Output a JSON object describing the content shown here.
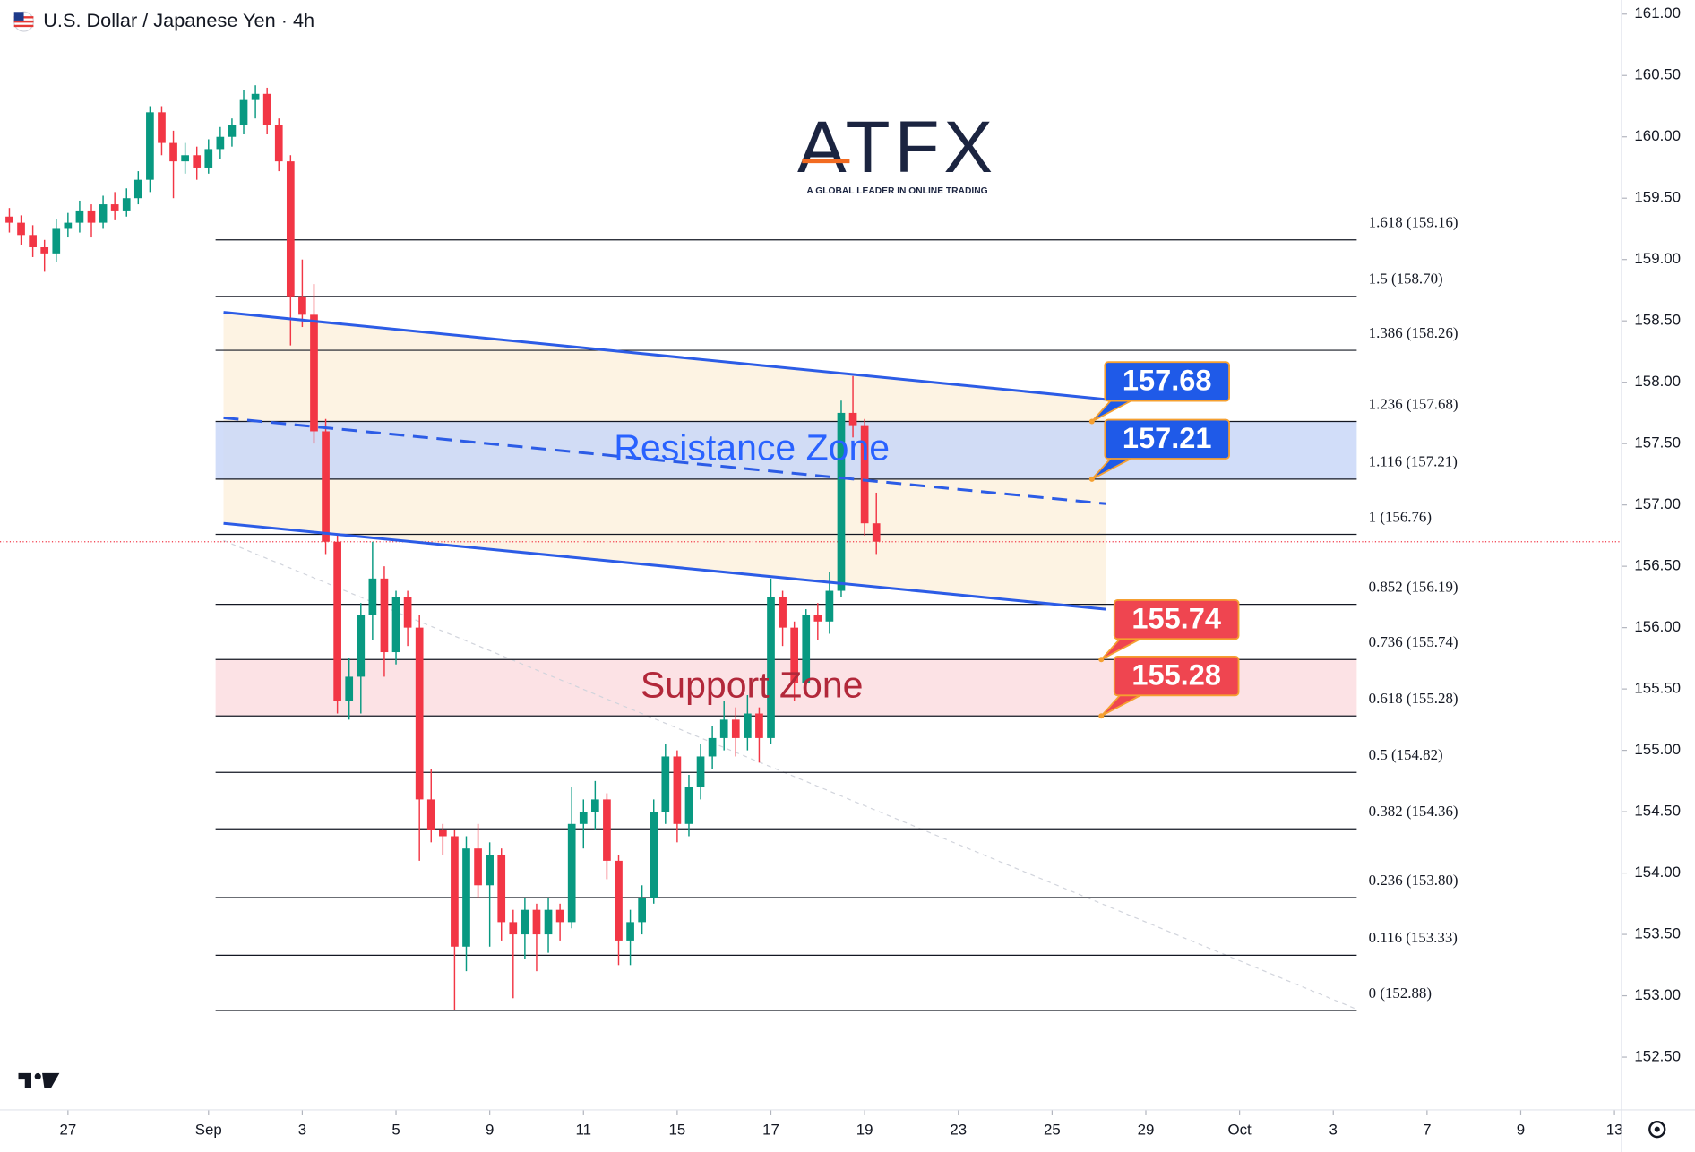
{
  "chart_data": {
    "type": "candlestick",
    "title": "U.S. Dollar / Japanese Yen · 4h",
    "logo": {
      "text": "ATFX",
      "tagline": "A GLOBAL LEADER IN ONLINE TRADING"
    },
    "xlim": [
      -1.45,
      33.15
    ],
    "ylim": [
      152.07,
      161.115
    ],
    "xticks": [
      {
        "value": 0,
        "label": "27"
      },
      {
        "value": 3,
        "label": "Sep"
      },
      {
        "value": 5,
        "label": "3"
      },
      {
        "value": 7,
        "label": "5"
      },
      {
        "value": 9,
        "label": "9"
      },
      {
        "value": 11,
        "label": "11"
      },
      {
        "value": 13,
        "label": "15"
      },
      {
        "value": 15,
        "label": "17"
      },
      {
        "value": 17,
        "label": "19"
      },
      {
        "value": 19,
        "label": "23"
      },
      {
        "value": 21,
        "label": "25"
      },
      {
        "value": 23,
        "label": "29"
      },
      {
        "value": 25,
        "label": "Oct"
      },
      {
        "value": 27,
        "label": "3"
      },
      {
        "value": 29,
        "label": "7"
      },
      {
        "value": 31,
        "label": "9"
      },
      {
        "value": 33,
        "label": "13"
      }
    ],
    "yticks": [
      {
        "value": 152.5,
        "label": "152.50"
      },
      {
        "value": 153,
        "label": "153.00"
      },
      {
        "value": 153.5,
        "label": "153.50"
      },
      {
        "value": 154,
        "label": "154.00"
      },
      {
        "value": 154.5,
        "label": "154.50"
      },
      {
        "value": 155,
        "label": "155.00"
      },
      {
        "value": 155.5,
        "label": "155.50"
      },
      {
        "value": 156,
        "label": "156.00"
      },
      {
        "value": 156.5,
        "label": "156.50"
      },
      {
        "value": 157,
        "label": "157.00"
      },
      {
        "value": 157.5,
        "label": "157.50"
      },
      {
        "value": 158,
        "label": "158.00"
      },
      {
        "value": 158.5,
        "label": "158.50"
      },
      {
        "value": 159,
        "label": "159.00"
      },
      {
        "value": 159.5,
        "label": "159.50"
      },
      {
        "value": 160,
        "label": "160.00"
      },
      {
        "value": 160.5,
        "label": "160.50"
      },
      {
        "value": 161,
        "label": "161.00"
      }
    ],
    "up_color": "#089981",
    "down_color": "#f23645",
    "x": [
      -1.25,
      -1,
      -0.75,
      -0.5,
      -0.25,
      0,
      0.25,
      0.5,
      0.75,
      1,
      1.25,
      1.5,
      1.75,
      2,
      2.25,
      2.5,
      2.75,
      3,
      3.25,
      3.5,
      3.75,
      4,
      4.25,
      4.5,
      4.75,
      5,
      5.25,
      5.5,
      5.75,
      6,
      6.25,
      6.5,
      6.75,
      7,
      7.25,
      7.5,
      7.75,
      8,
      8.25,
      8.5,
      8.75,
      9,
      9.25,
      9.5,
      9.75,
      10,
      10.25,
      10.5,
      10.75,
      11,
      11.25,
      11.5,
      11.75,
      12,
      12.25,
      12.5,
      12.75,
      13,
      13.25,
      13.5,
      13.75,
      14,
      14.25,
      14.5,
      14.75,
      15,
      15.25,
      15.5,
      15.75,
      16,
      16.25,
      16.5,
      16.75,
      17,
      17.25
    ],
    "open": [
      159.35,
      159.3,
      159.2,
      159.1,
      159.05,
      159.25,
      159.3,
      159.4,
      159.3,
      159.45,
      159.4,
      159.5,
      159.65,
      160.2,
      159.95,
      159.8,
      159.85,
      159.75,
      159.9,
      160,
      160.1,
      160.3,
      160.35,
      160.1,
      159.8,
      158.7,
      158.55,
      157.6,
      156.7,
      155.4,
      155.6,
      156.1,
      156.4,
      155.8,
      156.25,
      156,
      154.6,
      154.35,
      154.3,
      153.4,
      154.2,
      153.9,
      154.15,
      153.6,
      153.5,
      153.7,
      153.5,
      153.7,
      153.6,
      154.4,
      154.5,
      154.6,
      154.1,
      153.45,
      153.6,
      153.8,
      154.5,
      154.95,
      154.4,
      154.7,
      154.95,
      155.1,
      155.25,
      155.1,
      155.3,
      155.1,
      156.25,
      156,
      155.55,
      156.1,
      156.05,
      156.3,
      157.75,
      157.65,
      156.85
    ],
    "high": [
      159.42,
      159.36,
      159.28,
      159.16,
      159.33,
      159.38,
      159.48,
      159.45,
      159.52,
      159.55,
      159.58,
      159.72,
      160.25,
      160.25,
      160.05,
      159.95,
      159.92,
      159.98,
      160.08,
      160.15,
      160.38,
      160.42,
      160.4,
      160.15,
      159.85,
      159,
      158.8,
      157.7,
      156.75,
      155.75,
      156.2,
      156.7,
      156.5,
      156.3,
      156.3,
      156.1,
      154.85,
      154.4,
      154.35,
      154.3,
      154.4,
      154.25,
      154.2,
      153.7,
      153.8,
      153.75,
      153.8,
      153.75,
      154.7,
      154.6,
      154.75,
      154.65,
      154.15,
      153.7,
      153.9,
      154.6,
      155.05,
      155,
      154.8,
      155.05,
      155.2,
      155.4,
      155.35,
      155.45,
      155.35,
      156.4,
      156.3,
      156.05,
      156.15,
      156.2,
      156.45,
      157.85,
      158.05,
      157.7,
      157.1
    ],
    "low": [
      159.22,
      159.12,
      159.02,
      158.9,
      158.98,
      159.18,
      159.22,
      159.18,
      159.25,
      159.32,
      159.35,
      159.45,
      159.55,
      159.85,
      159.5,
      159.7,
      159.65,
      159.7,
      159.82,
      159.92,
      160.02,
      160.15,
      160.02,
      159.72,
      158.3,
      158.45,
      157.5,
      156.6,
      155.3,
      155.25,
      155.3,
      155.9,
      155.6,
      155.7,
      155.85,
      154.1,
      154.25,
      154.15,
      152.88,
      153.2,
      153.8,
      153.4,
      153.45,
      152.98,
      153.3,
      153.2,
      153.35,
      153.45,
      153.55,
      154.2,
      154.35,
      153.95,
      153.25,
      153.25,
      153.5,
      153.75,
      154.4,
      154.25,
      154.3,
      154.6,
      154.85,
      155,
      154.95,
      155,
      154.9,
      155.05,
      155.85,
      155.4,
      155.45,
      155.9,
      155.95,
      156.25,
      157.55,
      156.75,
      156.6
    ],
    "close": [
      159.3,
      159.2,
      159.1,
      159.05,
      159.25,
      159.3,
      159.4,
      159.3,
      159.45,
      159.4,
      159.5,
      159.65,
      160.2,
      159.95,
      159.8,
      159.85,
      159.75,
      159.9,
      160,
      160.1,
      160.3,
      160.35,
      160.1,
      159.8,
      158.7,
      158.55,
      157.6,
      156.7,
      155.4,
      155.6,
      156.1,
      156.4,
      155.8,
      156.25,
      156,
      154.6,
      154.35,
      154.3,
      153.4,
      154.2,
      153.9,
      154.15,
      153.6,
      153.5,
      153.7,
      153.5,
      153.7,
      153.6,
      154.4,
      154.5,
      154.6,
      154.1,
      153.45,
      153.6,
      153.8,
      154.5,
      154.95,
      154.4,
      154.7,
      154.95,
      155.1,
      155.25,
      155.1,
      155.3,
      155.1,
      156.25,
      156,
      155.55,
      156.1,
      156.05,
      156.3,
      157.75,
      157.65,
      156.85,
      156.7
    ],
    "last_price": 156.7,
    "fib_x": [
      3.15,
      27.5
    ],
    "fib_levels": [
      {
        "value": 159.16,
        "label": "1.618 (159.16)"
      },
      {
        "value": 158.7,
        "label": "1.5 (158.70)"
      },
      {
        "value": 158.26,
        "label": "1.386 (158.26)"
      },
      {
        "value": 157.68,
        "label": "1.236 (157.68)"
      },
      {
        "value": 157.21,
        "label": "1.116 (157.21)"
      },
      {
        "value": 156.76,
        "label": "1 (156.76)"
      },
      {
        "value": 156.19,
        "label": "0.852 (156.19)"
      },
      {
        "value": 155.74,
        "label": "0.736 (155.74)"
      },
      {
        "value": 155.28,
        "label": "0.618 (155.28)"
      },
      {
        "value": 154.82,
        "label": "0.5 (154.82)"
      },
      {
        "value": 154.36,
        "label": "0.382 (154.36)"
      },
      {
        "value": 153.8,
        "label": "0.236 (153.80)"
      },
      {
        "value": 153.33,
        "label": "0.116 (153.33)"
      },
      {
        "value": 152.88,
        "label": "0 (152.88)"
      }
    ],
    "zones": [
      {
        "label": "Resistance Zone",
        "low": 157.21,
        "high": 157.68,
        "color": "#c9d7f8",
        "text_color": "#2962ff"
      },
      {
        "label": "Support Zone",
        "low": 155.28,
        "high": 155.74,
        "color": "#fbdde1",
        "text_color": "#b2283a"
      }
    ],
    "channel": {
      "x": [
        3.32,
        22.15
      ],
      "upper": [
        158.57,
        157.86
      ],
      "middle": [
        157.71,
        157.01
      ],
      "lower": [
        156.85,
        156.15
      ],
      "color": "#2c5ce6",
      "fill": "#fdf3e3"
    },
    "trendline": {
      "x": [
        3.32,
        27.5
      ],
      "y": [
        156.71,
        152.89
      ]
    },
    "callouts": [
      {
        "value": 157.68,
        "x": 21.85,
        "color": "#1f5ae8"
      },
      {
        "value": 157.21,
        "x": 21.85,
        "color": "#1f5ae8"
      },
      {
        "value": 155.74,
        "x": 22.05,
        "color": "#ef4550"
      },
      {
        "value": 155.28,
        "x": 22.05,
        "color": "#ef4550"
      }
    ]
  }
}
